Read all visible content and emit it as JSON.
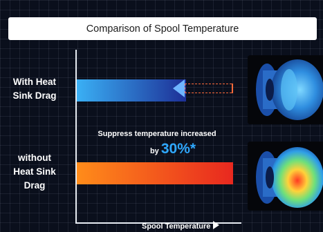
{
  "chart_data": {
    "type": "bar",
    "orientation": "horizontal",
    "title": "Comparison of Spool Temperature",
    "xlabel": "Spool Temperature",
    "categories": [
      "With Heat\nSink Drag",
      "without\nHeat Sink\nDrag"
    ],
    "values": [
      0.7,
      1.0
    ],
    "annotation": {
      "line1": "Suppress temperature increased",
      "prefix": "by",
      "value": "30%*"
    },
    "colors": {
      "with_start": "#3ab0f5",
      "with_end": "#1d2f96",
      "without_start": "#ff8c1a",
      "without_end": "#e8281f",
      "outline": "#ff6a3a"
    }
  }
}
